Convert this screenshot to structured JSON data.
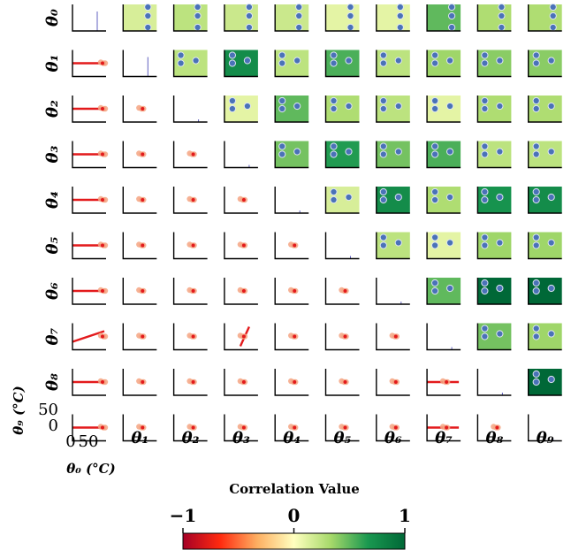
{
  "chart_data": {
    "type": "scatter-matrix",
    "n_vars": 10,
    "row_labels": [
      "θ₀",
      "θ₁",
      "θ₂",
      "θ₃",
      "θ₄",
      "θ₅",
      "θ₆",
      "θ₇",
      "θ₈",
      "θ₉ (°C)"
    ],
    "col_labels": [
      "θ₀ (°C)",
      "θ₁",
      "θ₂",
      "θ₃",
      "θ₄",
      "θ₅",
      "θ₆",
      "θ₇",
      "θ₈",
      "θ₉"
    ],
    "corner_ticks": {
      "x": [
        "0",
        "50"
      ],
      "y": [
        "0",
        "50"
      ]
    },
    "upper_correlation_matrix": [
      [
        null,
        0.15,
        0.25,
        0.2,
        0.2,
        0.1,
        0.1,
        0.5,
        0.3,
        0.3
      ],
      [
        null,
        null,
        0.25,
        0.75,
        0.25,
        0.55,
        0.25,
        0.35,
        0.4,
        0.4
      ],
      [
        null,
        null,
        null,
        0.1,
        0.5,
        0.3,
        0.25,
        0.1,
        0.3,
        0.3
      ],
      [
        null,
        null,
        null,
        null,
        0.45,
        0.65,
        0.45,
        0.55,
        0.25,
        0.25
      ],
      [
        null,
        null,
        null,
        null,
        null,
        0.15,
        0.75,
        0.3,
        0.7,
        0.75
      ],
      [
        null,
        null,
        null,
        null,
        null,
        null,
        0.25,
        0.1,
        0.35,
        0.35
      ],
      [
        null,
        null,
        null,
        null,
        null,
        null,
        null,
        0.5,
        1.0,
        1.0
      ],
      [
        null,
        null,
        null,
        null,
        null,
        null,
        null,
        null,
        0.45,
        0.35
      ],
      [
        null,
        null,
        null,
        null,
        null,
        null,
        null,
        null,
        null,
        1.0
      ],
      [
        null,
        null,
        null,
        null,
        null,
        null,
        null,
        null,
        null,
        null
      ]
    ],
    "colorbar": {
      "title": "Correlation Value",
      "ticks": [
        "−1",
        "0",
        "1"
      ],
      "range": [
        -1,
        1
      ],
      "colors": [
        "#a50026",
        "#ff2a0f",
        "#fdae61",
        "#ffffbf",
        "#a6d96a",
        "#1a9850",
        "#006837"
      ]
    },
    "marker_colors": {
      "upper_points": "#4a72b8",
      "lower_points": "#f4a582",
      "fit_line": "#e31a1c",
      "diag_line": "#6060c0"
    }
  }
}
